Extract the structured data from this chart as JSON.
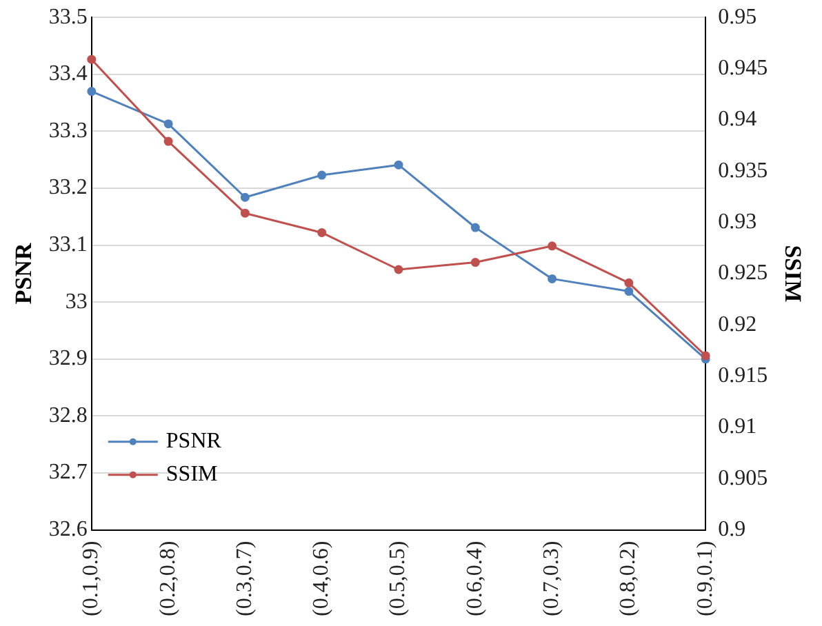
{
  "chart_data": {
    "type": "line",
    "ylabel": "PSNR",
    "y2label": "SSIM",
    "categories": [
      "(0.1,0.9)",
      "(0.2,0.8)",
      "(0.3,0.7)",
      "(0.4,0.6)",
      "(0.5,0.5)",
      "(0.6,0.4)",
      "(0.7,0.3)",
      "(0.8,0.2)",
      "(0.9,0.1)"
    ],
    "series": [
      {
        "name": "PSNR",
        "color": "#4f81bd",
        "values": [
          33.37,
          33.313,
          33.184,
          33.223,
          33.241,
          33.131,
          33.041,
          33.019,
          32.9
        ]
      },
      {
        "name": "SSIM",
        "color": "#c0504d",
        "axis": "y2",
        "values": [
          0.9459,
          0.9379,
          0.9309,
          0.929,
          0.9254,
          0.9261,
          0.9277,
          0.9241,
          0.917
        ]
      }
    ],
    "ylim": [
      32.6,
      33.5
    ],
    "yticks": [
      32.6,
      32.7,
      32.8,
      32.9,
      33,
      33.1,
      33.2,
      33.3,
      33.4,
      33.5
    ],
    "y2lim": [
      0.9,
      0.95
    ],
    "y2ticks": [
      0.9,
      0.905,
      0.91,
      0.915,
      0.92,
      0.925,
      0.93,
      0.935,
      0.94,
      0.945,
      0.95
    ],
    "grid": "y",
    "legend": "bottom left",
    "marker": "circle",
    "line_style": "solid"
  }
}
